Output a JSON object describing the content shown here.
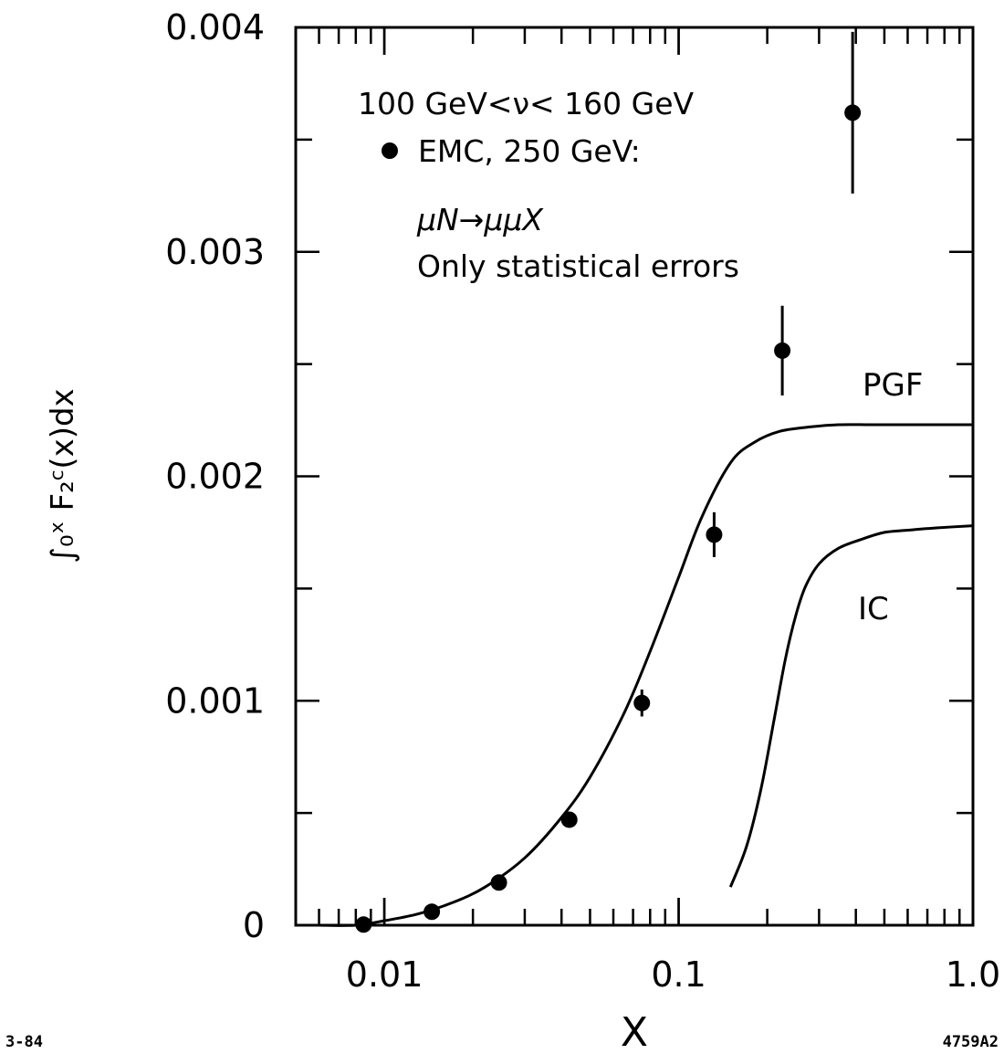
{
  "chart_data": {
    "type": "line",
    "xlabel": "X",
    "ylabel": "∫₀ˣ F₂ᶜ(x)dx",
    "x_scale": "log",
    "xlim": [
      0.005,
      1.0
    ],
    "ylim": [
      0,
      0.004
    ],
    "x_tick_labels": [
      "0.01",
      "0.1",
      "1.0"
    ],
    "x_tick_values": [
      0.01,
      0.1,
      1.0
    ],
    "y_tick_labels": [
      "0",
      "0.001",
      "0.002",
      "0.003",
      "0.004"
    ],
    "y_tick_values": [
      0,
      0.001,
      0.002,
      0.003,
      0.004
    ],
    "annotations": {
      "nu_range": "100 GeV<ν< 160 GeV",
      "legend_emc": "EMC, 250 GeV:",
      "process": "μN→μμX",
      "errors_note": "Only statistical errors"
    },
    "series": [
      {
        "name": "EMC, 250 GeV",
        "kind": "points_with_errors",
        "color": "#000000",
        "points": [
          {
            "x": 0.0085,
            "y": 3e-06,
            "err": 1e-05
          },
          {
            "x": 0.0145,
            "y": 6e-05,
            "err": 1e-05
          },
          {
            "x": 0.0245,
            "y": 0.00019,
            "err": 2e-05
          },
          {
            "x": 0.0425,
            "y": 0.00047,
            "err": 2e-05
          },
          {
            "x": 0.075,
            "y": 0.00099,
            "err": 6e-05
          },
          {
            "x": 0.132,
            "y": 0.00174,
            "err": 0.0001
          },
          {
            "x": 0.225,
            "y": 0.00256,
            "err": 0.0002
          },
          {
            "x": 0.39,
            "y": 0.00362,
            "err": 0.00036
          }
        ]
      },
      {
        "name": "PGF",
        "kind": "curve",
        "color": "#000000",
        "x": [
          0.006,
          0.008,
          0.01,
          0.013,
          0.017,
          0.022,
          0.03,
          0.04,
          0.05,
          0.065,
          0.08,
          0.1,
          0.12,
          0.15,
          0.18,
          0.22,
          0.28,
          0.35,
          0.45,
          0.6,
          0.8,
          1.0
        ],
        "y": [
          0.0,
          0.0,
          2e-05,
          5e-05,
          0.0001,
          0.00017,
          0.0003,
          0.00048,
          0.00066,
          0.00094,
          0.00122,
          0.00155,
          0.00182,
          0.00206,
          0.00215,
          0.0022,
          0.00222,
          0.00223,
          0.00223,
          0.00223,
          0.00223,
          0.00223
        ]
      },
      {
        "name": "IC",
        "kind": "curve",
        "color": "#000000",
        "x": [
          0.15,
          0.17,
          0.19,
          0.21,
          0.23,
          0.25,
          0.27,
          0.3,
          0.35,
          0.42,
          0.5,
          0.6,
          0.75,
          1.0
        ],
        "y": [
          0.00017,
          0.00035,
          0.0006,
          0.0009,
          0.00118,
          0.00138,
          0.00151,
          0.00161,
          0.00168,
          0.00172,
          0.00175,
          0.00176,
          0.00177,
          0.00178
        ]
      }
    ]
  },
  "footer": {
    "left_code": "3-84",
    "right_code": "4759A2"
  }
}
